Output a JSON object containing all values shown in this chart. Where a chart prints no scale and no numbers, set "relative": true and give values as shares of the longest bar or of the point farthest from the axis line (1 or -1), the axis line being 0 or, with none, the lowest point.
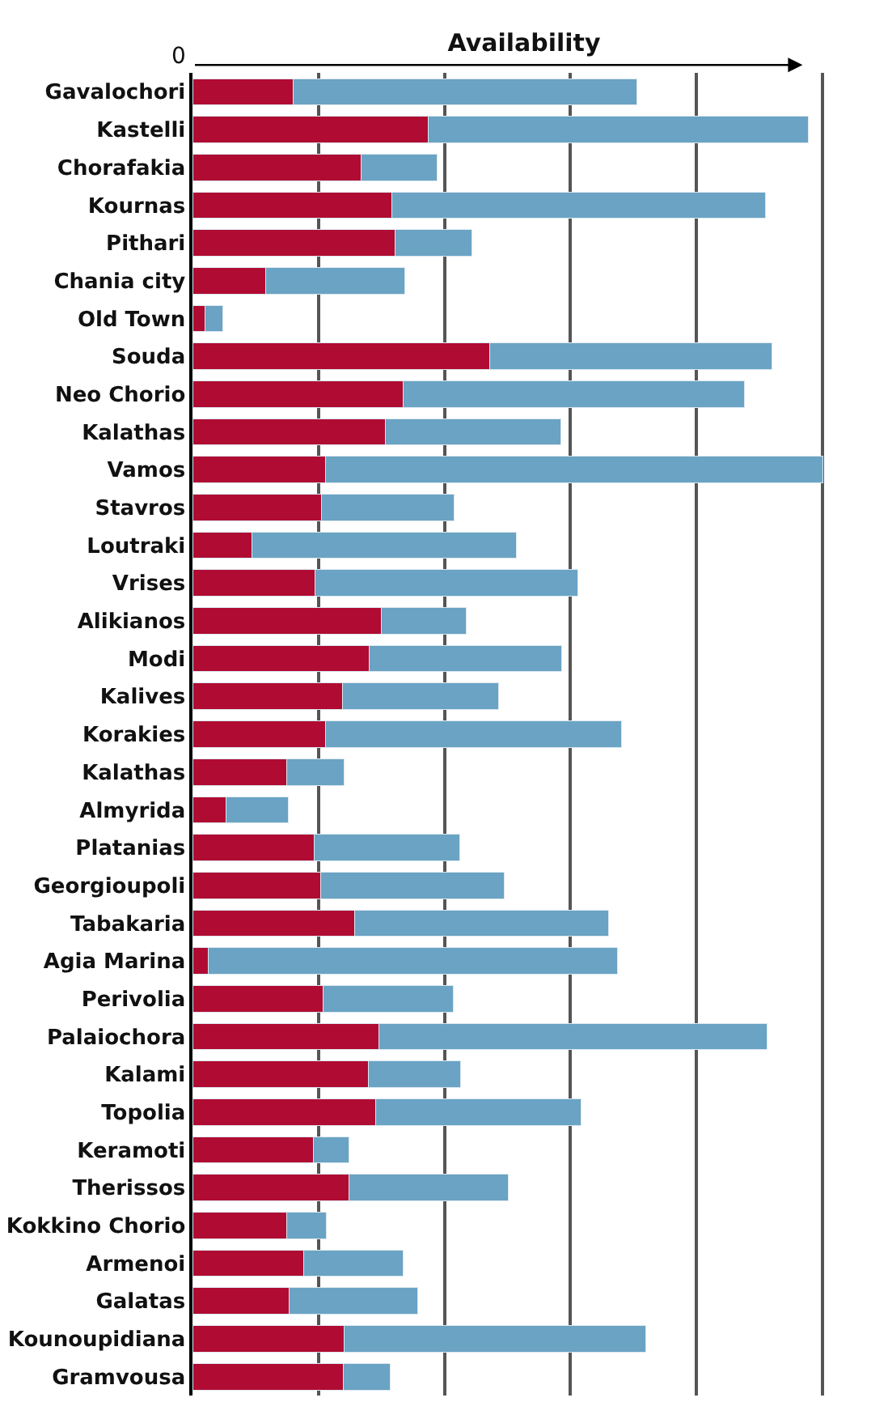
{
  "chart_data": {
    "type": "bar",
    "orientation": "horizontal",
    "stacked": true,
    "relative": true,
    "xlabel": "Availability",
    "annotations": [
      "0"
    ],
    "grid": "x",
    "categories": [
      "Gavalochori",
      "Kastelli",
      "Chorafakia",
      "Kournas",
      "Pithari",
      "Chania city",
      "Old Town",
      "Souda",
      "Neo Chorio",
      "Kalathas",
      "Vamos",
      "Stavros",
      "Loutraki",
      "Vrises",
      "Alikianos",
      "Modi",
      "Kalives",
      "Korakies",
      "Kalathas",
      "Almyrida",
      "Platanias",
      "Georgioupoli",
      "Tabakaria",
      "Agia Marina",
      "Perivolia",
      "Palaiochora",
      "Kalami",
      "Topolia",
      "Keramoti",
      "Therissos",
      "Kokkino Chorio",
      "Armenoi",
      "Galatas",
      "Kounoupidiana",
      "Gramvousa"
    ],
    "series": [
      {
        "color": "#b00b32",
        "values": [
          0.16,
          0.374,
          0.268,
          0.317,
          0.321,
          0.116,
          0.02,
          0.472,
          0.334,
          0.306,
          0.211,
          0.205,
          0.094,
          0.195,
          0.3,
          0.281,
          0.238,
          0.211,
          0.15,
          0.053,
          0.193,
          0.204,
          0.258,
          0.025,
          0.207,
          0.296,
          0.279,
          0.291,
          0.192,
          0.249,
          0.15,
          0.176,
          0.153,
          0.241,
          0.239
        ]
      },
      {
        "color": "#6aa3c4",
        "values": [
          0.545,
          0.604,
          0.12,
          0.593,
          0.123,
          0.221,
          0.028,
          0.448,
          0.542,
          0.279,
          0.789,
          0.21,
          0.42,
          0.417,
          0.135,
          0.305,
          0.248,
          0.47,
          0.091,
          0.099,
          0.231,
          0.291,
          0.403,
          0.649,
          0.207,
          0.616,
          0.147,
          0.326,
          0.056,
          0.252,
          0.063,
          0.158,
          0.204,
          0.479,
          0.075
        ]
      }
    ]
  }
}
